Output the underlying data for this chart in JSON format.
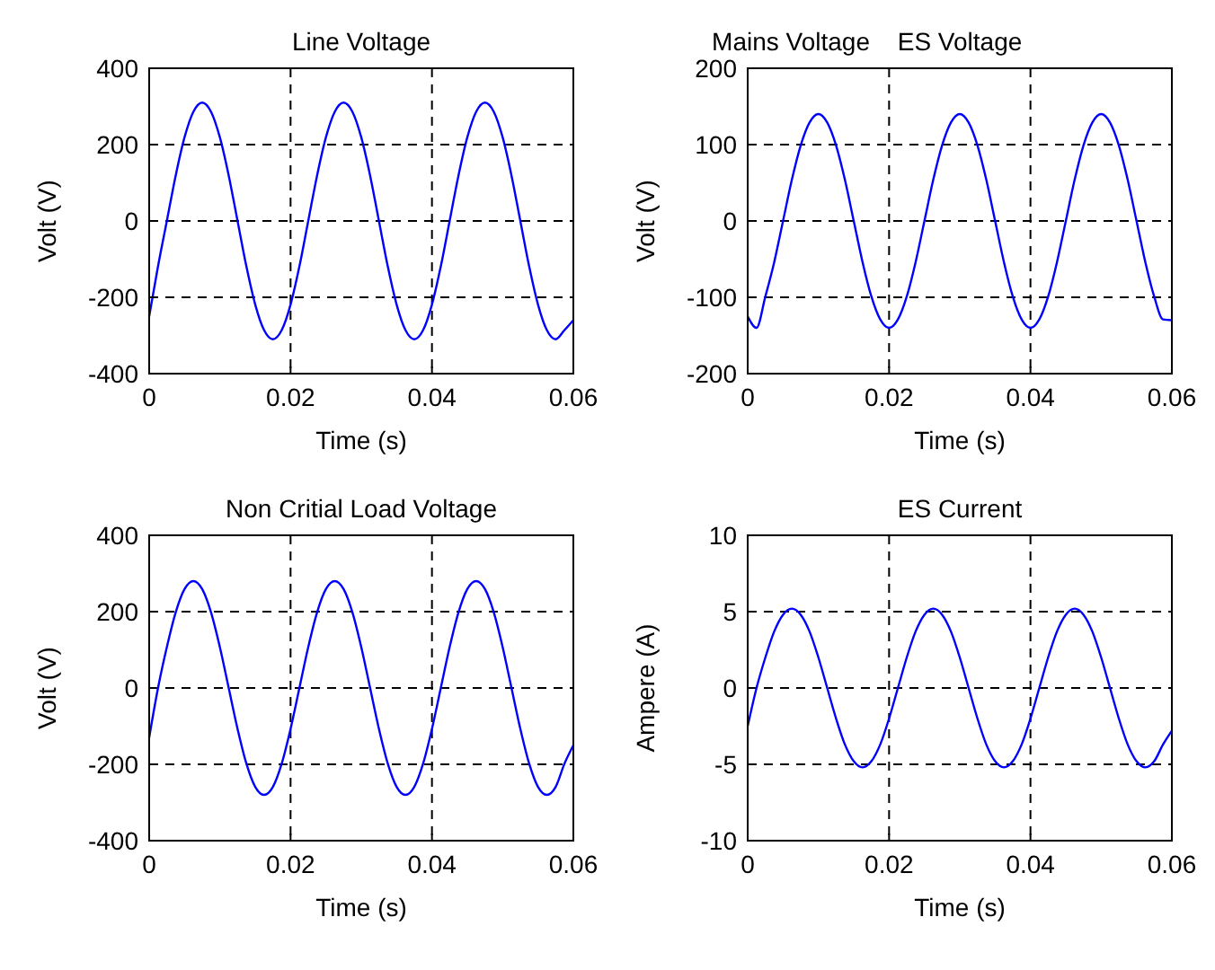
{
  "chart_data": [
    {
      "type": "line",
      "title": "Line Voltage",
      "xlabel": "Time (s)",
      "ylabel": "Volt (V)",
      "xlim": [
        0,
        0.06
      ],
      "xticks": [
        0,
        0.02,
        0.04,
        0.06
      ],
      "ylim": [
        -400,
        400
      ],
      "yticks": [
        -400,
        -200,
        0,
        200,
        400
      ],
      "grid": true,
      "x": [
        0,
        0.00125,
        0.0025,
        0.00375,
        0.005,
        0.00625,
        0.0075,
        0.00875,
        0.01,
        0.01125,
        0.0125,
        0.01375,
        0.015,
        0.01625,
        0.0175,
        0.01875,
        0.02,
        0.02125,
        0.0225,
        0.02375,
        0.025,
        0.02625,
        0.0275,
        0.02875,
        0.03,
        0.03125,
        0.0325,
        0.03375,
        0.035,
        0.03625,
        0.0375,
        0.03875,
        0.04,
        0.04125,
        0.0425,
        0.04375,
        0.045,
        0.04625,
        0.0475,
        0.04875,
        0.05,
        0.05125,
        0.0525,
        0.05375,
        0.055,
        0.05625,
        0.0575,
        0.05875,
        0.06
      ],
      "series": [
        {
          "color": "#0000ff",
          "values": [
            -250,
            -119,
            0,
            119,
            219,
            286,
            310,
            286,
            219,
            119,
            0,
            -119,
            -219,
            -286,
            -310,
            -286,
            -219,
            -119,
            0,
            119,
            219,
            286,
            310,
            286,
            219,
            119,
            0,
            -119,
            -219,
            -286,
            -310,
            -286,
            -219,
            -119,
            0,
            119,
            219,
            286,
            310,
            286,
            219,
            119,
            0,
            -119,
            -219,
            -286,
            -310,
            -286,
            -260
          ]
        }
      ]
    },
    {
      "type": "line",
      "title": "ES Voltage",
      "annotations": [
        "Mains Voltage"
      ],
      "xlabel": "Time (s)",
      "ylabel": "Volt (V)",
      "xlim": [
        0,
        0.06
      ],
      "xticks": [
        0,
        0.02,
        0.04,
        0.06
      ],
      "ylim": [
        -200,
        200
      ],
      "yticks": [
        -200,
        -100,
        0,
        100,
        200
      ],
      "grid": true,
      "x": [
        0,
        0.00125,
        0.0025,
        0.00375,
        0.005,
        0.00625,
        0.0075,
        0.00875,
        0.01,
        0.01125,
        0.0125,
        0.01375,
        0.015,
        0.01625,
        0.0175,
        0.01875,
        0.02,
        0.02125,
        0.0225,
        0.02375,
        0.025,
        0.02625,
        0.0275,
        0.02875,
        0.03,
        0.03125,
        0.0325,
        0.03375,
        0.035,
        0.03625,
        0.0375,
        0.03875,
        0.04,
        0.04125,
        0.0425,
        0.04375,
        0.045,
        0.04625,
        0.0475,
        0.04875,
        0.05,
        0.05125,
        0.0525,
        0.05375,
        0.055,
        0.05625,
        0.0575,
        0.05875,
        0.06
      ],
      "series": [
        {
          "color": "#0000ff",
          "values": [
            -125,
            -140,
            -99,
            -54,
            0,
            54,
            99,
            129,
            140,
            129,
            99,
            54,
            0,
            -54,
            -99,
            -129,
            -140,
            -129,
            -99,
            -54,
            0,
            54,
            99,
            129,
            140,
            129,
            99,
            54,
            0,
            -54,
            -99,
            -129,
            -140,
            -129,
            -99,
            -54,
            0,
            54,
            99,
            129,
            140,
            129,
            99,
            54,
            0,
            -54,
            -99,
            -129,
            -130
          ]
        }
      ]
    },
    {
      "type": "line",
      "title": "Non Critial Load Voltage",
      "xlabel": "Time (s)",
      "ylabel": "Volt (V)",
      "xlim": [
        0,
        0.06
      ],
      "xticks": [
        0,
        0.02,
        0.04,
        0.06
      ],
      "ylim": [
        -400,
        400
      ],
      "yticks": [
        -400,
        -200,
        0,
        200,
        400
      ],
      "grid": true,
      "x": [
        0,
        0.00125,
        0.0025,
        0.00375,
        0.005,
        0.00625,
        0.0075,
        0.00875,
        0.01,
        0.01125,
        0.0125,
        0.01375,
        0.015,
        0.01625,
        0.0175,
        0.01875,
        0.02,
        0.02125,
        0.0225,
        0.02375,
        0.025,
        0.02625,
        0.0275,
        0.02875,
        0.03,
        0.03125,
        0.0325,
        0.03375,
        0.035,
        0.03625,
        0.0375,
        0.03875,
        0.04,
        0.04125,
        0.0425,
        0.04375,
        0.045,
        0.04625,
        0.0475,
        0.04875,
        0.05,
        0.05125,
        0.0525,
        0.05375,
        0.055,
        0.05625,
        0.0575,
        0.05875,
        0.06
      ],
      "series": [
        {
          "color": "#0000ff",
          "values": [
            -130,
            0,
            107,
            198,
            259,
            280,
            259,
            198,
            107,
            0,
            -107,
            -198,
            -259,
            -280,
            -259,
            -198,
            -107,
            0,
            107,
            198,
            259,
            280,
            259,
            198,
            107,
            0,
            -107,
            -198,
            -259,
            -280,
            -259,
            -198,
            -107,
            0,
            107,
            198,
            259,
            280,
            259,
            198,
            107,
            0,
            -107,
            -198,
            -259,
            -280,
            -259,
            -198,
            -150
          ]
        }
      ]
    },
    {
      "type": "line",
      "title": "ES Current",
      "xlabel": "Time (s)",
      "ylabel": "Ampere (A)",
      "xlim": [
        0,
        0.06
      ],
      "xticks": [
        0,
        0.02,
        0.04,
        0.06
      ],
      "ylim": [
        -10,
        10
      ],
      "yticks": [
        -10,
        -5,
        0,
        5,
        10
      ],
      "grid": true,
      "x": [
        0,
        0.00125,
        0.0025,
        0.00375,
        0.005,
        0.00625,
        0.0075,
        0.00875,
        0.01,
        0.01125,
        0.0125,
        0.01375,
        0.015,
        0.01625,
        0.0175,
        0.01875,
        0.02,
        0.02125,
        0.0225,
        0.02375,
        0.025,
        0.02625,
        0.0275,
        0.02875,
        0.03,
        0.03125,
        0.0325,
        0.03375,
        0.035,
        0.03625,
        0.0375,
        0.03875,
        0.04,
        0.04125,
        0.0425,
        0.04375,
        0.045,
        0.04625,
        0.0475,
        0.04875,
        0.05,
        0.05125,
        0.0525,
        0.05375,
        0.055,
        0.05625,
        0.0575,
        0.05875,
        0.06
      ],
      "series": [
        {
          "color": "#0000ff",
          "values": [
            -2.5,
            0,
            2,
            3.7,
            4.8,
            5.2,
            4.8,
            3.7,
            2,
            0,
            -2,
            -3.7,
            -4.8,
            -5.2,
            -4.8,
            -3.7,
            -2,
            0,
            2,
            3.7,
            4.8,
            5.2,
            4.8,
            3.7,
            2,
            0,
            -2,
            -3.7,
            -4.8,
            -5.2,
            -4.8,
            -3.7,
            -2,
            0,
            2,
            3.7,
            4.8,
            5.2,
            4.8,
            3.7,
            2,
            0,
            -2,
            -3.7,
            -4.8,
            -5.2,
            -4.8,
            -3.7,
            -2.8
          ]
        }
      ]
    }
  ]
}
